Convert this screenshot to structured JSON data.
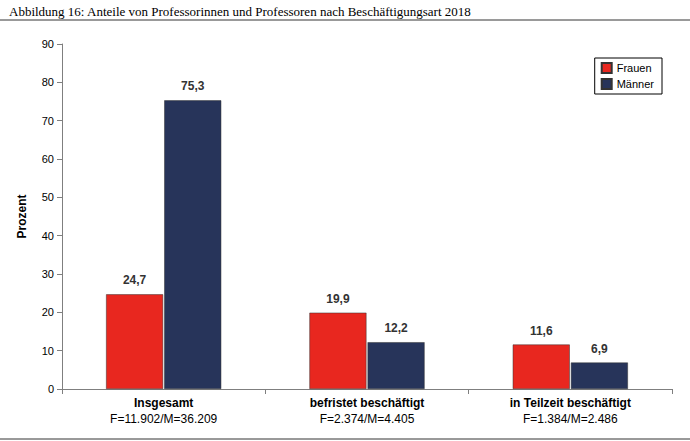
{
  "chart_data": {
    "type": "bar",
    "title": "Abbildung 16: Anteile von Professorinnen und Professoren nach Beschäftigungsart 2018",
    "y_label": "Prozent",
    "categories": [
      "Insgesamt\nF=11.902/M=36.209",
      "befristet beschäftigt\nF=2.374/M=4.405",
      "in Teilzeit beschäftigt\nF=1.384/M=2.486"
    ],
    "series": [
      {
        "name": "Frauen",
        "color": "#e8271f",
        "values": [
          24.7,
          19.9,
          11.6
        ],
        "value_labels": [
          "24,7",
          "19,9",
          "11,6"
        ]
      },
      {
        "name": "Männer",
        "color": "#27345a",
        "values": [
          75.3,
          12.2,
          6.9
        ],
        "value_labels": [
          "75,3",
          "12,2",
          "6,9"
        ]
      }
    ],
    "ylim": [
      0,
      90
    ],
    "yticks": [
      0,
      10,
      20,
      30,
      40,
      50,
      60,
      70,
      80,
      90
    ],
    "grid": false,
    "legend": "top-right",
    "data_labels": true
  }
}
